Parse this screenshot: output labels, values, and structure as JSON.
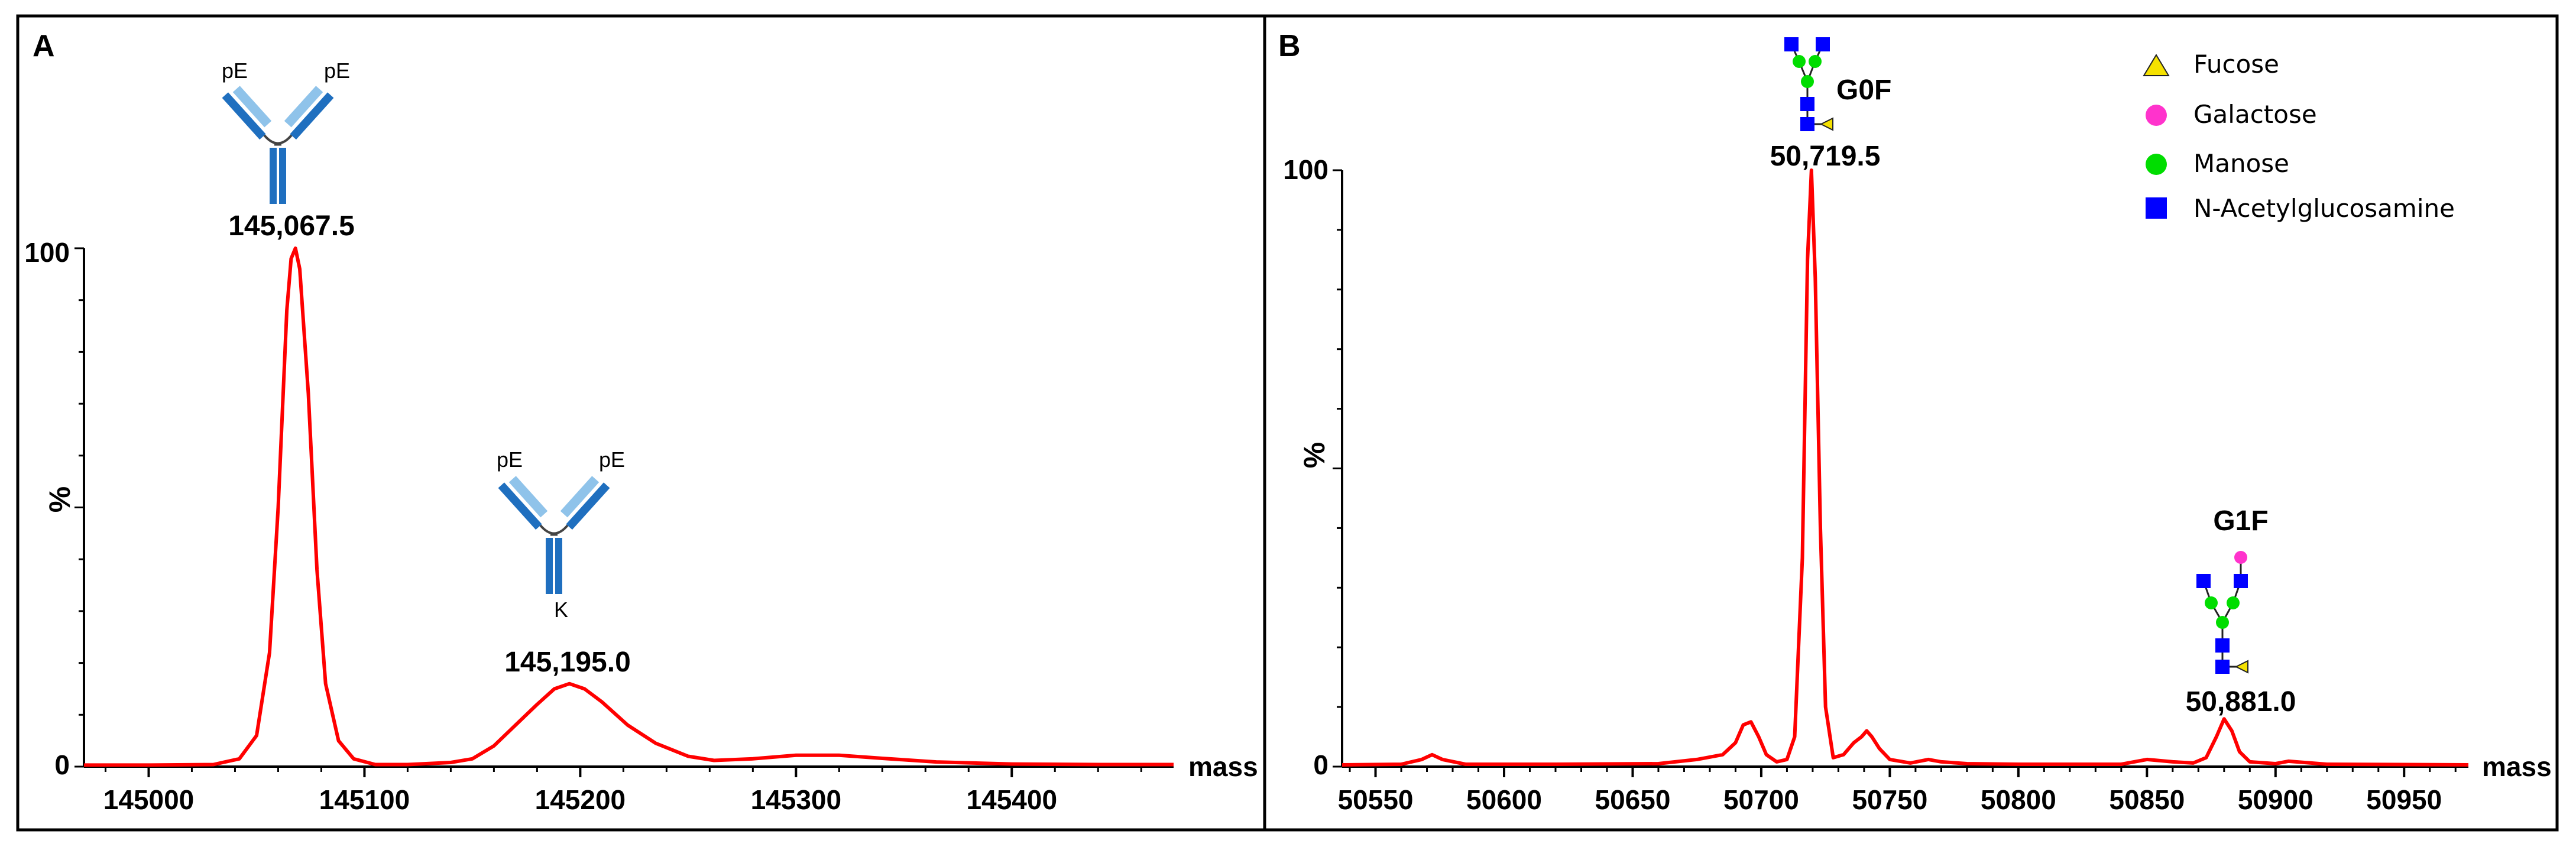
{
  "chart_data": [
    {
      "type": "line",
      "panel_label": "A",
      "xlabel": "mass",
      "ylabel": "%",
      "xlim": [
        144970,
        145475
      ],
      "ylim": [
        0,
        100
      ],
      "x_ticks": [
        145000,
        145100,
        145200,
        145300,
        145400
      ],
      "x_tick_labels": [
        "145000",
        "145100",
        "145200",
        "145300",
        "145400"
      ],
      "y_tick_labels": [
        "0",
        "100"
      ],
      "line_color": "#ff0000",
      "peaks": [
        {
          "mass": 145067.5,
          "label": "145,067.5",
          "intensity": 100,
          "annotations": [
            "pE",
            "pE"
          ]
        },
        {
          "mass": 145195.0,
          "label": "145,195.0",
          "intensity": 16,
          "annotations": [
            "pE",
            "pE",
            "K"
          ]
        }
      ],
      "series": [
        {
          "x": [
            144970,
            145000,
            145030,
            145042,
            145050,
            145056,
            145060,
            145064,
            145066,
            145068,
            145070,
            145074,
            145078,
            145082,
            145088,
            145095,
            145105,
            145120,
            145140,
            145150,
            145160,
            145170,
            145180,
            145188,
            145195,
            145202,
            145210,
            145222,
            145235,
            145250,
            145262,
            145280,
            145300,
            145320,
            145340,
            145365,
            145400,
            145440,
            145475
          ],
          "y": [
            0.3,
            0.3,
            0.4,
            1.5,
            6,
            22,
            50,
            88,
            98,
            100,
            96,
            72,
            38,
            16,
            5,
            1.5,
            0.4,
            0.4,
            0.8,
            1.5,
            4,
            8,
            12,
            15,
            16,
            15,
            12.5,
            8,
            4.5,
            2,
            1.2,
            1.5,
            2.2,
            2.2,
            1.6,
            0.9,
            0.5,
            0.4,
            0.4
          ]
        }
      ]
    },
    {
      "type": "line",
      "panel_label": "B",
      "xlabel": "mass",
      "ylabel": "%",
      "xlim": [
        50537,
        50975
      ],
      "ylim": [
        0,
        100
      ],
      "x_ticks": [
        50550,
        50600,
        50650,
        50700,
        50750,
        50800,
        50850,
        50900,
        50950
      ],
      "x_tick_labels": [
        "50550",
        "50600",
        "50650",
        "50700",
        "50750",
        "50800",
        "50850",
        "50900",
        "50950"
      ],
      "y_tick_labels": [
        "0",
        "100"
      ],
      "line_color": "#ff0000",
      "peaks": [
        {
          "mass": 50719.5,
          "label": "50,719.5",
          "glycan": "G0F",
          "intensity": 100
        },
        {
          "mass": 50881.0,
          "label": "50,881.0",
          "glycan": "G1F",
          "intensity": 8
        }
      ],
      "legend": [
        {
          "label": "Fucose",
          "shape": "triangle",
          "color": "#f5e100"
        },
        {
          "label": "Galactose",
          "shape": "circle",
          "color": "#ff33cc"
        },
        {
          "label": "Manose",
          "shape": "circle",
          "color": "#00dd00"
        },
        {
          "label": "N-Acetylglucosamine",
          "shape": "square",
          "color": "#0000ff"
        }
      ],
      "series": [
        {
          "x": [
            50537,
            50560,
            50568,
            50572,
            50576,
            50585,
            50620,
            50660,
            50675,
            50685,
            50690,
            50693,
            50696,
            50699,
            50702,
            50706,
            50710,
            50713,
            50716,
            50718,
            50719.5,
            50721,
            50723,
            50725,
            50728,
            50732,
            50736,
            50739,
            50741,
            50743,
            50746,
            50750,
            50758,
            50765,
            50770,
            50780,
            50800,
            50840,
            50850,
            50860,
            50868,
            50873,
            50877,
            50880,
            50883,
            50886,
            50890,
            50900,
            50905,
            50920,
            50975
          ],
          "y": [
            0.3,
            0.4,
            1.2,
            2,
            1.2,
            0.4,
            0.4,
            0.5,
            1.2,
            2,
            4,
            7,
            7.5,
            5,
            2,
            0.8,
            1.2,
            5,
            35,
            85,
            100,
            82,
            40,
            10,
            1.5,
            2,
            4,
            5,
            6,
            5,
            3,
            1.2,
            0.6,
            1.2,
            0.8,
            0.5,
            0.4,
            0.4,
            1.2,
            0.8,
            0.6,
            1.5,
            5,
            8,
            6,
            2.5,
            0.8,
            0.5,
            0.9,
            0.4,
            0.3
          ]
        }
      ]
    }
  ]
}
